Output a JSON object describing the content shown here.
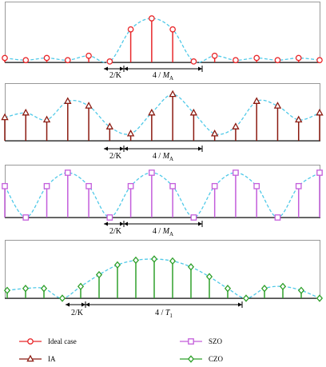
{
  "panels": [
    {
      "id": "ideal",
      "color": "#e8282b",
      "marker": "circle",
      "values": [
        0.1,
        0.05,
        0.1,
        0.05,
        0.15,
        0.02,
        0.75,
        1.0,
        0.75,
        0.02,
        0.15,
        0.05,
        0.1,
        0.05,
        0.1,
        0.05
      ],
      "label_small": "2/K",
      "label_large_num": "4 / ",
      "label_large_var": "M",
      "label_large_sub": "A"
    },
    {
      "id": "ia",
      "color": "#8b1a10",
      "marker": "triangle",
      "values": [
        0.5,
        0.6,
        0.45,
        0.85,
        0.75,
        0.3,
        0.15,
        0.6,
        1.0,
        0.6,
        0.15,
        0.3,
        0.85,
        0.75,
        0.45,
        0.6
      ],
      "label_small": "2/K",
      "label_large_num": "4 / ",
      "label_large_var": "M",
      "label_large_sub": "A"
    },
    {
      "id": "szo",
      "color": "#c35ddb",
      "marker": "square",
      "values": [
        0.7,
        0.0,
        0.7,
        1.0,
        0.7,
        0.0,
        0.7,
        1.0,
        0.7,
        0.0,
        0.7,
        1.0,
        0.7,
        0.0,
        0.7,
        1.0
      ],
      "label_small": "2/K",
      "label_large_num": "4 / ",
      "label_large_var": "M",
      "label_large_sub": "A"
    },
    {
      "id": "czo",
      "color": "#2fa02b",
      "marker": "diamond",
      "values": [
        0.2,
        0.25,
        0.25,
        0.0,
        0.3,
        0.6,
        0.85,
        0.97,
        1.0,
        0.95,
        0.8,
        0.55,
        0.25,
        0.0,
        0.25,
        0.3,
        0.2,
        0.0
      ],
      "label_small": "2/K",
      "label_large_num": "4 / ",
      "label_large_var": "T",
      "label_large_sub": "1"
    }
  ],
  "legend": {
    "items": [
      {
        "label": "Ideal case",
        "color": "#e8282b",
        "marker": "circle"
      },
      {
        "label": "IA",
        "color": "#8b1a10",
        "marker": "triangle"
      },
      {
        "label": "SZO",
        "color": "#c35ddb",
        "marker": "square"
      },
      {
        "label": "CZO",
        "color": "#2fa02b",
        "marker": "diamond"
      }
    ]
  },
  "colors": {
    "envelope": "#4fc9e8",
    "frame": "#808080",
    "axis": "#000000"
  }
}
